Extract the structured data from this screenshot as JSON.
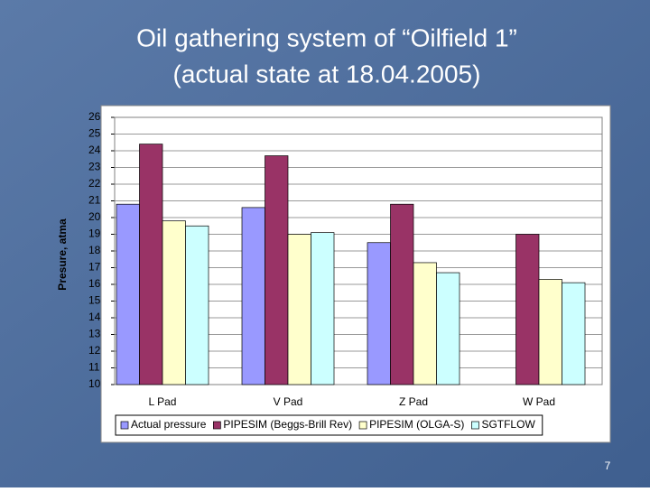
{
  "chart_data": {
    "type": "bar",
    "title": [
      "Oil gathering system of “Oilfield 1”",
      "(actual state at 18.04.2005)"
    ],
    "y_label": "Presure, atma",
    "categories": [
      "L Pad",
      "V Pad",
      "Z Pad",
      "W Pad"
    ],
    "series": [
      {
        "name": "Actual pressure",
        "color": "#9999ff",
        "values": [
          20.8,
          20.6,
          18.5,
          null
        ]
      },
      {
        "name": "PIPESIM (Beggs-Brill Rev)",
        "color": "#993366",
        "values": [
          24.4,
          23.7,
          20.8,
          19.0
        ]
      },
      {
        "name": "PIPESIM (OLGA-S)",
        "color": "#ffffcc",
        "values": [
          19.8,
          19.0,
          17.3,
          16.3
        ]
      },
      {
        "name": "SGTFLOW",
        "color": "#ccffff",
        "values": [
          19.5,
          19.1,
          16.7,
          16.1
        ]
      }
    ],
    "ylim": [
      10,
      26
    ],
    "yticks": [
      10,
      11,
      12,
      13,
      14,
      15,
      16,
      17,
      18,
      19,
      20,
      21,
      22,
      23,
      24,
      25,
      26
    ],
    "grid": true,
    "legend": "bottom"
  },
  "page_number": 7
}
